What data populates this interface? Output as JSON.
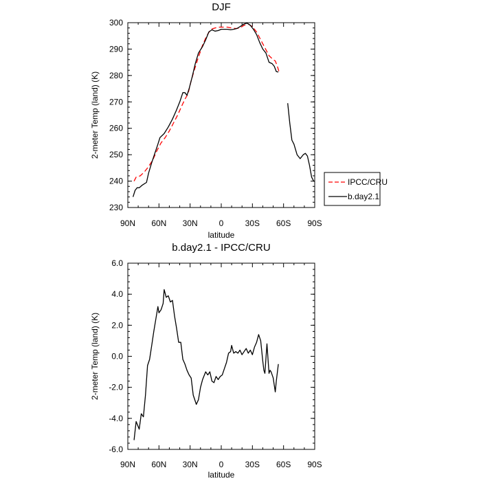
{
  "chart_data": [
    {
      "type": "line",
      "title": "DJF",
      "xlabel": "latitude",
      "ylabel": "2-meter Temp (land) (K)",
      "x_ticks": [
        "90N",
        "60N",
        "30N",
        "0",
        "30S",
        "60S",
        "90S"
      ],
      "x_tick_values": [
        90,
        60,
        30,
        0,
        -30,
        -60,
        -90
      ],
      "xlim": [
        90,
        -90
      ],
      "y_ticks": [
        "230",
        "240",
        "250",
        "260",
        "270",
        "280",
        "290",
        "300"
      ],
      "y_tick_values": [
        230,
        240,
        250,
        260,
        270,
        280,
        290,
        300
      ],
      "ylim": [
        230,
        300
      ],
      "grid": false,
      "legend_position": "right",
      "series": [
        {
          "name": "IPCC/CRU",
          "color": "#ff0000",
          "dash": "dashed",
          "segments": [
            [
              [
                84,
                240.0
              ],
              [
                82,
                241.5
              ],
              [
                78,
                242.0
              ],
              [
                74,
                243.5
              ],
              [
                70,
                245.5
              ],
              [
                66,
                248.0
              ],
              [
                62,
                251.5
              ],
              [
                58,
                254.5
              ],
              [
                54,
                256.5
              ],
              [
                50,
                259.0
              ],
              [
                46,
                262.0
              ],
              [
                42,
                265.0
              ],
              [
                38,
                268.5
              ],
              [
                35,
                271.0
              ],
              [
                32,
                273.0
              ],
              [
                29,
                278.0
              ],
              [
                26,
                282.0
              ],
              [
                22,
                287.0
              ],
              [
                18,
                291.5
              ],
              [
                14,
                295.0
              ],
              [
                10,
                297.5
              ],
              [
                6,
                298.0
              ],
              [
                2,
                298.3
              ],
              [
                -2,
                298.3
              ],
              [
                -6,
                298.3
              ],
              [
                -10,
                298.0
              ],
              [
                -14,
                297.8
              ],
              [
                -18,
                298.0
              ],
              [
                -22,
                299.0
              ],
              [
                -26,
                299.5
              ],
              [
                -30,
                298.5
              ],
              [
                -34,
                296.5
              ],
              [
                -38,
                293.5
              ],
              [
                -42,
                290.5
              ],
              [
                -46,
                287.5
              ],
              [
                -50,
                286.0
              ],
              [
                -52,
                285.5
              ],
              [
                -54,
                283.5
              ],
              [
                -56,
                281.0
              ]
            ]
          ]
        },
        {
          "name": "b.day2.1",
          "color": "#000000",
          "dash": "solid",
          "segments": [
            [
              [
                85,
                234.0
              ],
              [
                83,
                236.5
              ],
              [
                81,
                237.5
              ],
              [
                79,
                237.5
              ],
              [
                76,
                238.5
              ],
              [
                72,
                239.5
              ],
              [
                70,
                243.0
              ],
              [
                67,
                247.0
              ],
              [
                64,
                250.5
              ],
              [
                61,
                254.0
              ],
              [
                59,
                256.5
              ],
              [
                55,
                258.0
              ],
              [
                51,
                260.5
              ],
              [
                47,
                263.5
              ],
              [
                43,
                267.0
              ],
              [
                40,
                270.0
              ],
              [
                37,
                273.5
              ],
              [
                35,
                273.5
              ],
              [
                33,
                272.5
              ],
              [
                31,
                275.0
              ],
              [
                28,
                279.5
              ],
              [
                25,
                284.5
              ],
              [
                22,
                288.5
              ],
              [
                18,
                291.0
              ],
              [
                15,
                293.5
              ],
              [
                12,
                296.5
              ],
              [
                9,
                297.3
              ],
              [
                6,
                296.8
              ],
              [
                3,
                297.0
              ],
              [
                0,
                297.5
              ],
              [
                -3,
                297.5
              ],
              [
                -6,
                297.5
              ],
              [
                -9,
                297.3
              ],
              [
                -12,
                297.5
              ],
              [
                -15,
                297.8
              ],
              [
                -18,
                298.5
              ],
              [
                -22,
                299.5
              ],
              [
                -25,
                299.8
              ],
              [
                -28,
                299.0
              ],
              [
                -31,
                297.5
              ],
              [
                -34,
                295.5
              ],
              [
                -37,
                292.5
              ],
              [
                -40,
                290.0
              ],
              [
                -43,
                288.5
              ],
              [
                -46,
                285.0
              ],
              [
                -49,
                284.5
              ],
              [
                -51,
                283.5
              ],
              [
                -53,
                281.5
              ],
              [
                -55,
                281.3
              ]
            ],
            [
              [
                -64,
                269.5
              ],
              [
                -66,
                262.0
              ],
              [
                -68,
                255.5
              ],
              [
                -70,
                254.0
              ],
              [
                -73,
                250.0
              ],
              [
                -76,
                248.5
              ],
              [
                -79,
                250.0
              ],
              [
                -81,
                250.5
              ],
              [
                -83,
                249.5
              ],
              [
                -85,
                246.0
              ],
              [
                -87,
                241.5
              ],
              [
                -89,
                240.0
              ],
              [
                -90,
                240.0
              ]
            ]
          ]
        }
      ]
    },
    {
      "type": "line",
      "title": "b.day2.1 - IPCC/CRU",
      "xlabel": "latitude",
      "ylabel": "2-meter Temp (land) (K)",
      "x_ticks": [
        "90N",
        "60N",
        "30N",
        "0",
        "30S",
        "60S",
        "90S"
      ],
      "x_tick_values": [
        90,
        60,
        30,
        0,
        -30,
        -60,
        -90
      ],
      "xlim": [
        90,
        -90
      ],
      "y_ticks": [
        "6.0",
        "4.0",
        "2.0",
        "0.0",
        "-2.0",
        "-4.0",
        "-6.0"
      ],
      "y_tick_values": [
        6,
        4,
        2,
        0,
        -2,
        -4,
        -6
      ],
      "ylim": [
        -6,
        6
      ],
      "grid": false,
      "series": [
        {
          "color": "#000000",
          "dash": "solid",
          "segments": [
            [
              [
                84,
                -5.4
              ],
              [
                82,
                -4.2
              ],
              [
                79,
                -4.7
              ],
              [
                77,
                -3.7
              ],
              [
                75,
                -3.9
              ],
              [
                73,
                -2.5
              ],
              [
                71,
                -0.6
              ],
              [
                69,
                -0.2
              ],
              [
                67,
                0.7
              ],
              [
                65,
                1.6
              ],
              [
                63,
                2.4
              ],
              [
                61,
                3.2
              ],
              [
                60,
                2.8
              ],
              [
                58,
                3.0
              ],
              [
                56,
                3.4
              ],
              [
                55,
                4.3
              ],
              [
                53,
                3.8
              ],
              [
                51,
                3.9
              ],
              [
                49,
                3.5
              ],
              [
                47,
                3.6
              ],
              [
                45,
                2.6
              ],
              [
                43,
                1.8
              ],
              [
                41,
                0.9
              ],
              [
                39,
                0.9
              ],
              [
                37,
                -0.2
              ],
              [
                35,
                -0.5
              ],
              [
                33,
                -0.9
              ],
              [
                31,
                -1.2
              ],
              [
                29,
                -1.4
              ],
              [
                27,
                -2.5
              ],
              [
                25,
                -2.9
              ],
              [
                24,
                -3.1
              ],
              [
                22,
                -2.8
              ],
              [
                20,
                -2.0
              ],
              [
                18,
                -1.5
              ],
              [
                15,
                -1.0
              ],
              [
                13,
                -1.2
              ],
              [
                11,
                -1.0
              ],
              [
                9,
                -1.6
              ],
              [
                7,
                -1.7
              ],
              [
                5,
                -1.3
              ],
              [
                3,
                -1.5
              ],
              [
                1,
                -1.3
              ],
              [
                -1,
                -1.2
              ],
              [
                -3,
                -0.8
              ],
              [
                -5,
                -0.4
              ],
              [
                -7,
                0.2
              ],
              [
                -9,
                0.3
              ],
              [
                -10,
                0.7
              ],
              [
                -12,
                0.2
              ],
              [
                -14,
                0.3
              ],
              [
                -16,
                0.2
              ],
              [
                -18,
                0.4
              ],
              [
                -20,
                0.1
              ],
              [
                -22,
                0.3
              ],
              [
                -24,
                0.5
              ],
              [
                -26,
                0.2
              ],
              [
                -28,
                0.4
              ],
              [
                -30,
                0.1
              ],
              [
                -32,
                0.6
              ],
              [
                -34,
                0.9
              ],
              [
                -36,
                1.4
              ],
              [
                -38,
                1.0
              ],
              [
                -40,
                -0.3
              ],
              [
                -41,
                -0.9
              ],
              [
                -42,
                -1.1
              ],
              [
                -44,
                0.8
              ],
              [
                -46,
                -1.1
              ],
              [
                -47,
                -0.9
              ],
              [
                -48,
                -1.0
              ],
              [
                -50,
                -1.4
              ],
              [
                -52,
                -2.3
              ],
              [
                -53,
                -1.6
              ],
              [
                -55,
                -0.5
              ]
            ]
          ]
        }
      ]
    }
  ],
  "legend": {
    "items": [
      {
        "label": "IPCC/CRU"
      },
      {
        "label": "b.day2.1"
      }
    ]
  }
}
